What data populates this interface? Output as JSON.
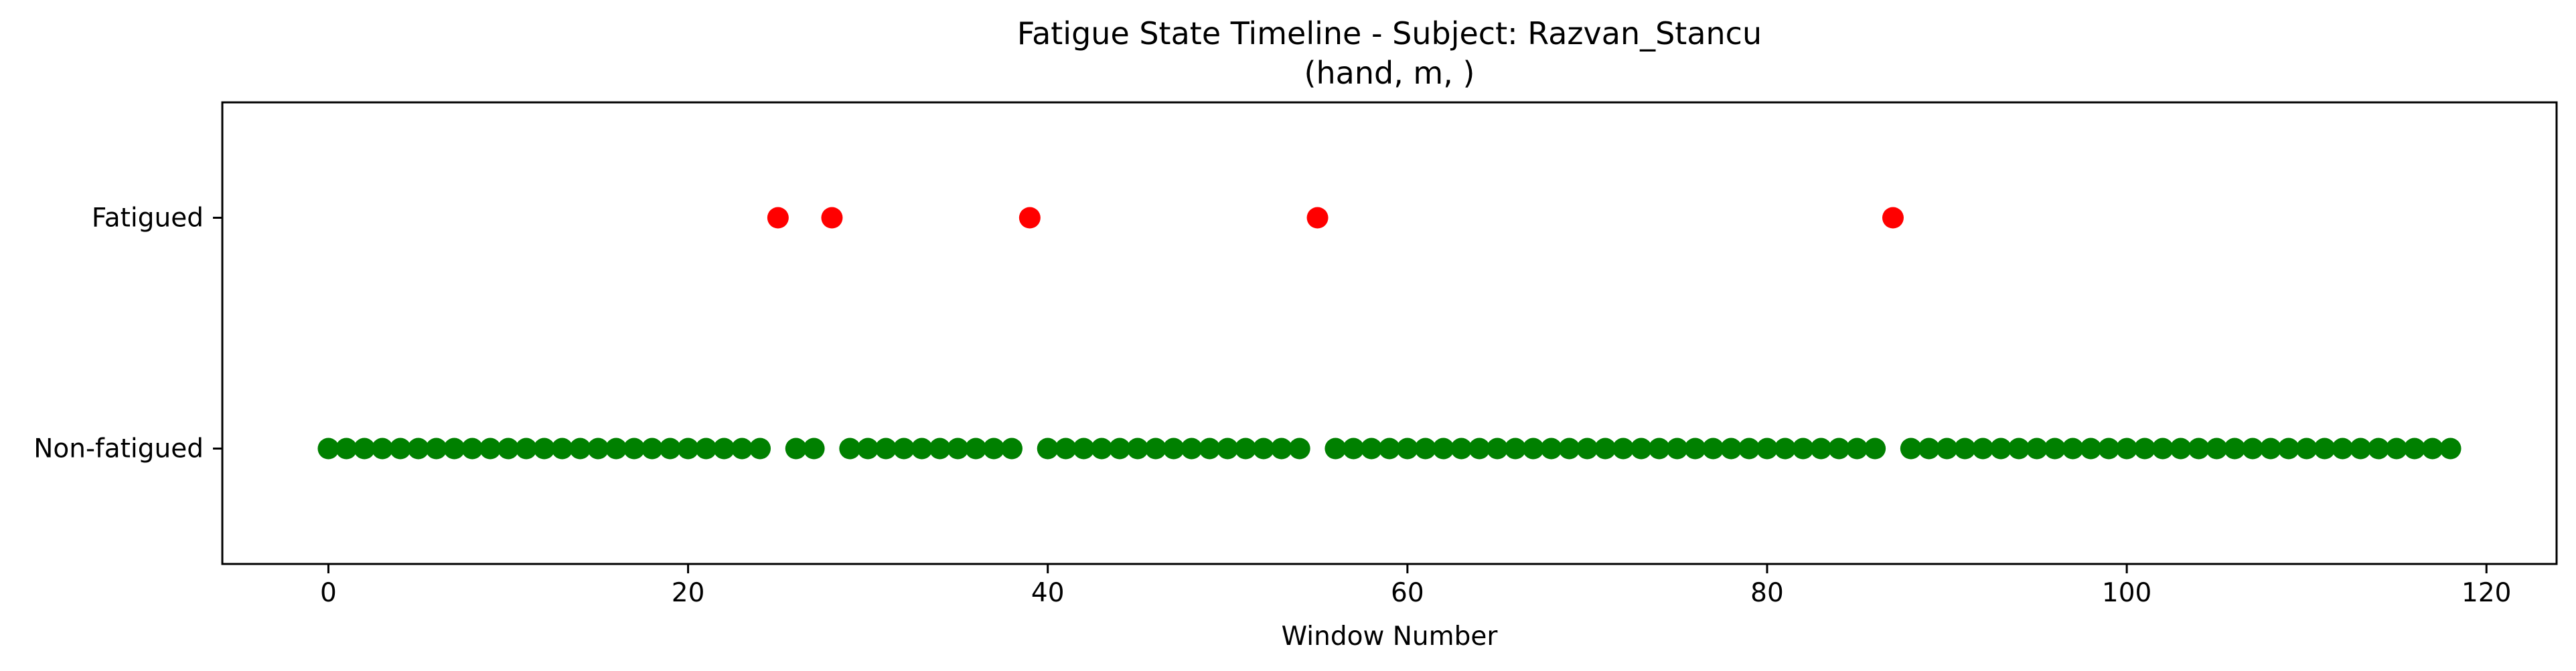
{
  "chart_data": {
    "type": "scatter",
    "title": "Fatigue State Timeline - Subject: Razvan_Stancu",
    "subtitle": "(hand, m, )",
    "xlabel": "Window Number",
    "ylabel": "",
    "xlim": [
      -5.9,
      123.9
    ],
    "ylim": [
      -0.5,
      1.5
    ],
    "xticks": [
      0,
      20,
      40,
      60,
      80,
      100,
      120
    ],
    "yticks": [
      {
        "value": 0,
        "label": "Non-fatigued"
      },
      {
        "value": 1,
        "label": "Fatigued"
      }
    ],
    "grid": false,
    "legend": "none",
    "series": [
      {
        "color": "#ff0000",
        "points": [
          [
            25,
            1
          ],
          [
            28,
            1
          ],
          [
            39,
            1
          ],
          [
            55,
            1
          ],
          [
            87,
            1
          ]
        ]
      },
      {
        "color": "#008000",
        "points": [
          [
            0,
            0
          ],
          [
            1,
            0
          ],
          [
            2,
            0
          ],
          [
            3,
            0
          ],
          [
            4,
            0
          ],
          [
            5,
            0
          ],
          [
            6,
            0
          ],
          [
            7,
            0
          ],
          [
            8,
            0
          ],
          [
            9,
            0
          ],
          [
            10,
            0
          ],
          [
            11,
            0
          ],
          [
            12,
            0
          ],
          [
            13,
            0
          ],
          [
            14,
            0
          ],
          [
            15,
            0
          ],
          [
            16,
            0
          ],
          [
            17,
            0
          ],
          [
            18,
            0
          ],
          [
            19,
            0
          ],
          [
            20,
            0
          ],
          [
            21,
            0
          ],
          [
            22,
            0
          ],
          [
            23,
            0
          ],
          [
            24,
            0
          ],
          [
            26,
            0
          ],
          [
            27,
            0
          ],
          [
            29,
            0
          ],
          [
            30,
            0
          ],
          [
            31,
            0
          ],
          [
            32,
            0
          ],
          [
            33,
            0
          ],
          [
            34,
            0
          ],
          [
            35,
            0
          ],
          [
            36,
            0
          ],
          [
            37,
            0
          ],
          [
            38,
            0
          ],
          [
            40,
            0
          ],
          [
            41,
            0
          ],
          [
            42,
            0
          ],
          [
            43,
            0
          ],
          [
            44,
            0
          ],
          [
            45,
            0
          ],
          [
            46,
            0
          ],
          [
            47,
            0
          ],
          [
            48,
            0
          ],
          [
            49,
            0
          ],
          [
            50,
            0
          ],
          [
            51,
            0
          ],
          [
            52,
            0
          ],
          [
            53,
            0
          ],
          [
            54,
            0
          ],
          [
            56,
            0
          ],
          [
            57,
            0
          ],
          [
            58,
            0
          ],
          [
            59,
            0
          ],
          [
            60,
            0
          ],
          [
            61,
            0
          ],
          [
            62,
            0
          ],
          [
            63,
            0
          ],
          [
            64,
            0
          ],
          [
            65,
            0
          ],
          [
            66,
            0
          ],
          [
            67,
            0
          ],
          [
            68,
            0
          ],
          [
            69,
            0
          ],
          [
            70,
            0
          ],
          [
            71,
            0
          ],
          [
            72,
            0
          ],
          [
            73,
            0
          ],
          [
            74,
            0
          ],
          [
            75,
            0
          ],
          [
            76,
            0
          ],
          [
            77,
            0
          ],
          [
            78,
            0
          ],
          [
            79,
            0
          ],
          [
            80,
            0
          ],
          [
            81,
            0
          ],
          [
            82,
            0
          ],
          [
            83,
            0
          ],
          [
            84,
            0
          ],
          [
            85,
            0
          ],
          [
            86,
            0
          ],
          [
            88,
            0
          ],
          [
            89,
            0
          ],
          [
            90,
            0
          ],
          [
            91,
            0
          ],
          [
            92,
            0
          ],
          [
            93,
            0
          ],
          [
            94,
            0
          ],
          [
            95,
            0
          ],
          [
            96,
            0
          ],
          [
            97,
            0
          ],
          [
            98,
            0
          ],
          [
            99,
            0
          ],
          [
            100,
            0
          ],
          [
            101,
            0
          ],
          [
            102,
            0
          ],
          [
            103,
            0
          ],
          [
            104,
            0
          ],
          [
            105,
            0
          ],
          [
            106,
            0
          ],
          [
            107,
            0
          ],
          [
            108,
            0
          ],
          [
            109,
            0
          ],
          [
            110,
            0
          ],
          [
            111,
            0
          ],
          [
            112,
            0
          ],
          [
            113,
            0
          ],
          [
            114,
            0
          ],
          [
            115,
            0
          ],
          [
            116,
            0
          ],
          [
            117,
            0
          ],
          [
            118,
            0
          ]
        ]
      }
    ]
  }
}
